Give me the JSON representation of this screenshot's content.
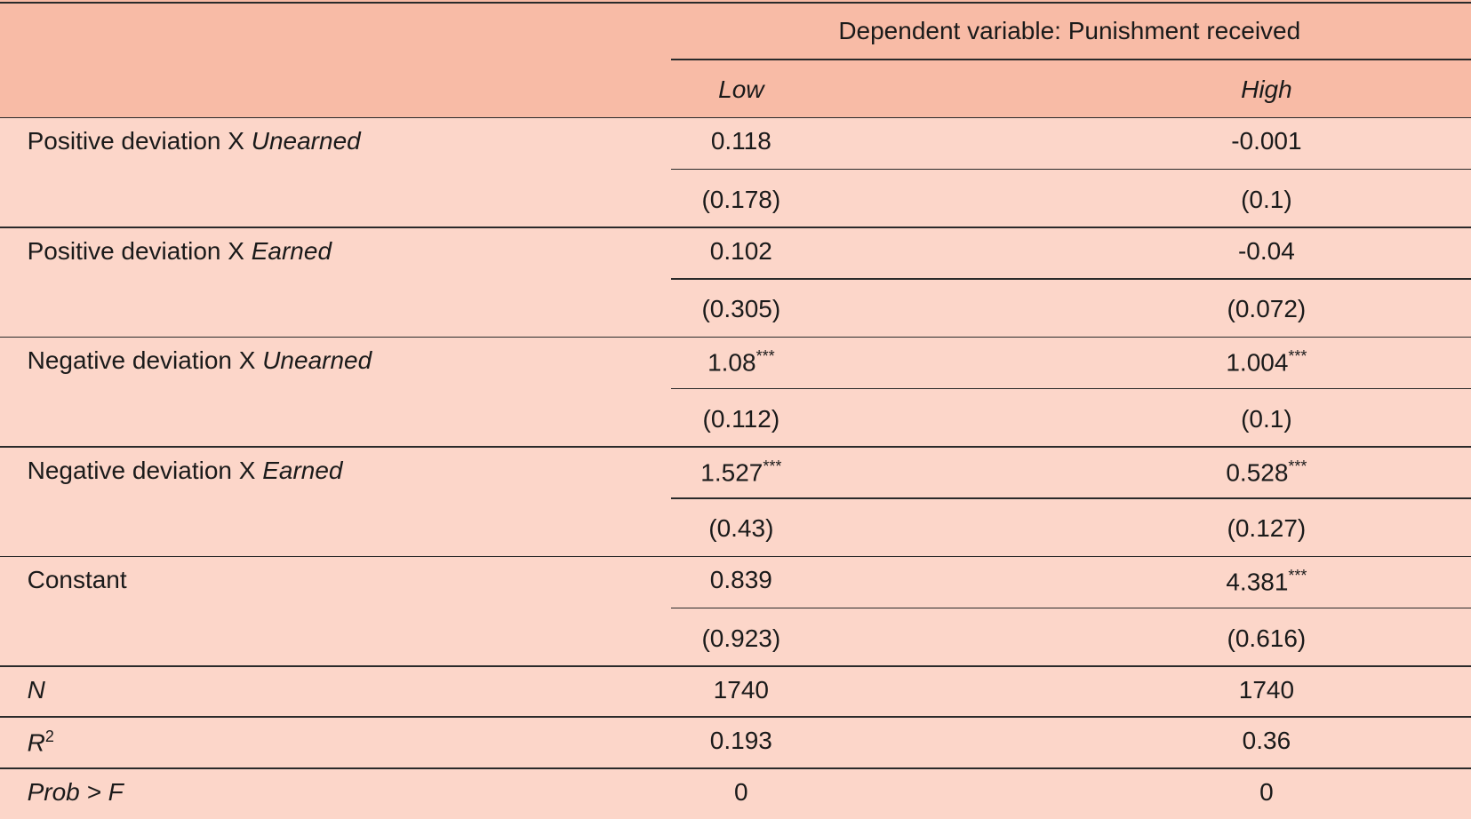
{
  "header": {
    "title": "Dependent variable: Punishment received",
    "columns": [
      "Low",
      "High"
    ]
  },
  "rows": [
    {
      "label": {
        "text": "Positive deviation X",
        "italic": "Unearned"
      },
      "cells": [
        {
          "coef": "0.118",
          "se": "(0.178)"
        },
        {
          "coef": "-0.001",
          "se": "(0.1)"
        }
      ]
    },
    {
      "label": {
        "text": "Positive deviation X",
        "italic": "Earned"
      },
      "cells": [
        {
          "coef": "0.102",
          "se": "(0.305)"
        },
        {
          "coef": "-0.04",
          "se": "(0.072)"
        }
      ]
    },
    {
      "label": {
        "text": "Negative deviation X",
        "italic": "Unearned"
      },
      "cells": [
        {
          "coef": "1.08",
          "stars": "***",
          "se": "(0.112)"
        },
        {
          "coef": "1.004",
          "stars": "***",
          "se": "(0.1)"
        }
      ]
    },
    {
      "label": {
        "text": "Negative deviation X",
        "italic": "Earned"
      },
      "cells": [
        {
          "coef": "1.527",
          "stars": "***",
          "se": "(0.43)"
        },
        {
          "coef": "0.528",
          "stars": "***",
          "se": "(0.127)"
        }
      ]
    },
    {
      "label": {
        "text": "Constant"
      },
      "cells": [
        {
          "coef": "0.839",
          "se": "(0.923)"
        },
        {
          "coef": "4.381",
          "stars": "***",
          "se": "(0.616)"
        }
      ]
    }
  ],
  "stats": [
    {
      "label": {
        "italic": "N"
      },
      "cells": [
        "1740",
        "1740"
      ]
    },
    {
      "label": {
        "italic": "R",
        "sup": "2"
      },
      "cells": [
        "0.193",
        "0.36"
      ]
    },
    {
      "label": {
        "italic": "Prob > F"
      },
      "cells": [
        "0",
        "0"
      ]
    }
  ]
}
